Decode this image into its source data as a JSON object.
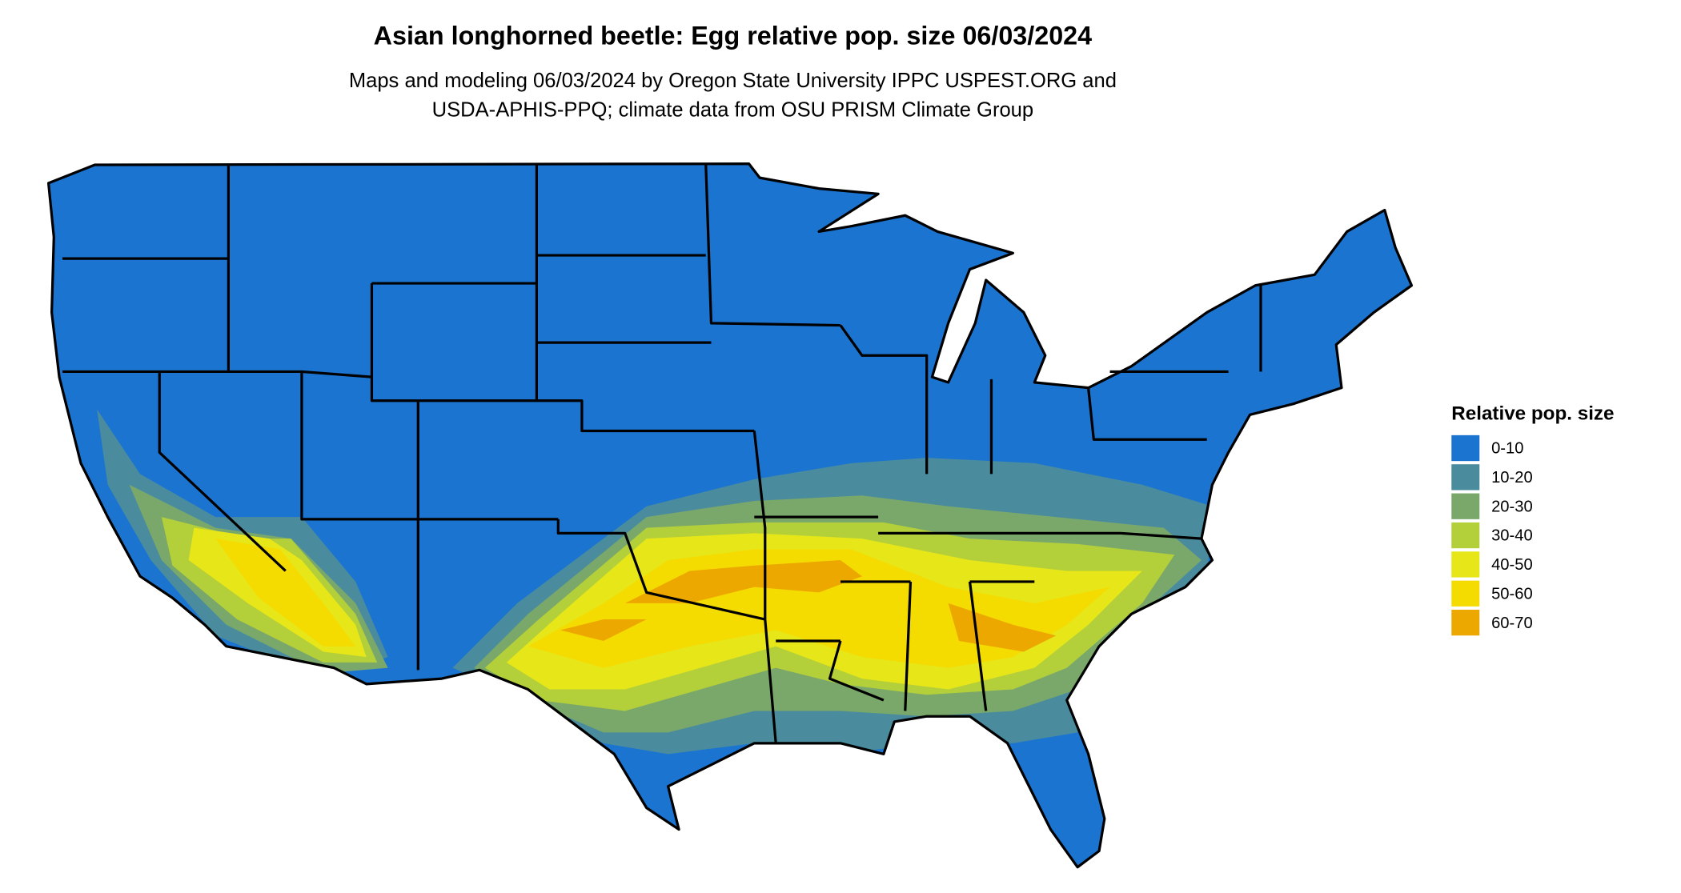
{
  "title": "Asian longhorned beetle: Egg relative pop. size 06/03/2024",
  "subtitle": [
    "Maps and modeling 06/03/2024 by Oregon State University IPPC USPEST.ORG and",
    "USDA-APHIS-PPQ; climate data from OSU PRISM Climate Group"
  ],
  "legend": {
    "title": "Relative pop. size",
    "items": [
      {
        "label": "0-10",
        "color": "#1b75d0"
      },
      {
        "label": "10-20",
        "color": "#4a8c9e"
      },
      {
        "label": "20-30",
        "color": "#7aa86a"
      },
      {
        "label": "30-40",
        "color": "#b3cf3a"
      },
      {
        "label": "40-50",
        "color": "#e6e619"
      },
      {
        "label": "50-60",
        "color": "#f5dc00"
      },
      {
        "label": "60-70",
        "color": "#eda800"
      }
    ]
  }
}
